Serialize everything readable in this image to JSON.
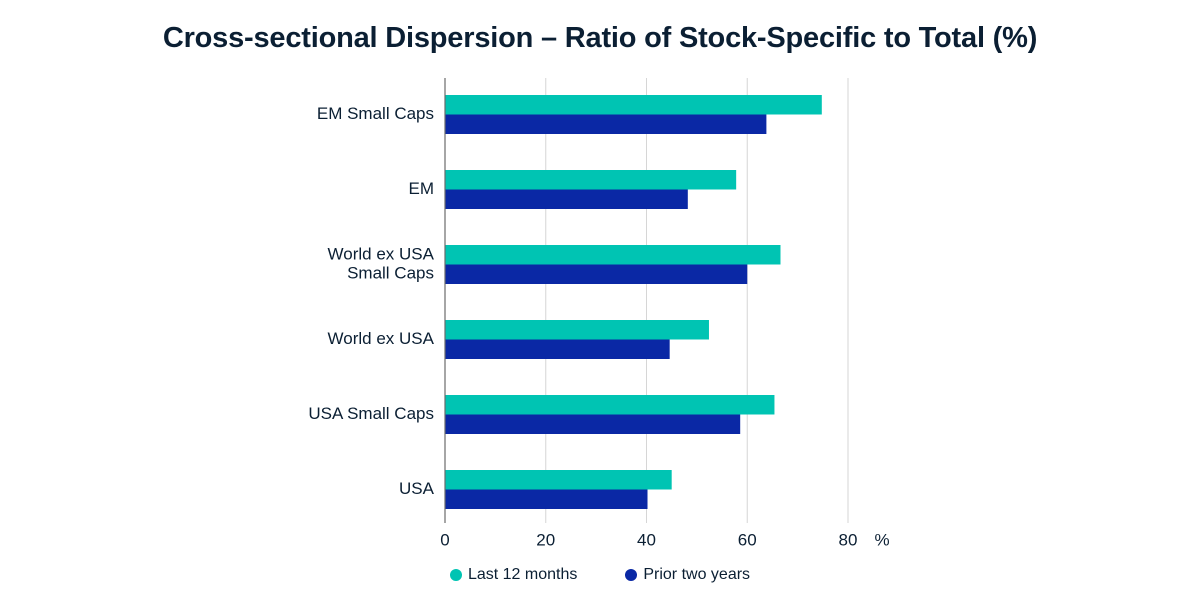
{
  "title": "Cross-sectional Dispersion – Ratio of Stock-Specific to Total (%)",
  "colors": {
    "last12": "#00c4b3",
    "prior2": "#0a28a5",
    "grid": "#d6d6d6",
    "axis": "#6b6b6b",
    "text": "#0b1f33"
  },
  "chart_data": {
    "type": "bar",
    "orientation": "horizontal",
    "title": "Cross-sectional Dispersion – Ratio of Stock-Specific to Total (%)",
    "categories": [
      [
        "EM Small Caps"
      ],
      [
        "EM"
      ],
      [
        "World ex USA",
        "Small Caps"
      ],
      [
        "World ex USA"
      ],
      [
        "USA Small Caps"
      ],
      [
        "USA"
      ]
    ],
    "series": [
      {
        "name": "Last 12 months",
        "values": [
          74.8,
          57.8,
          66.6,
          52.4,
          65.4,
          45.0
        ]
      },
      {
        "name": "Prior two years",
        "values": [
          63.8,
          48.2,
          60.0,
          44.6,
          58.6,
          40.2
        ]
      }
    ],
    "xlim": [
      0,
      80
    ],
    "xticks": [
      0,
      20,
      40,
      60,
      80
    ],
    "x_unit_label": "%",
    "grid": "vertical",
    "legend_position": "bottom-center"
  }
}
